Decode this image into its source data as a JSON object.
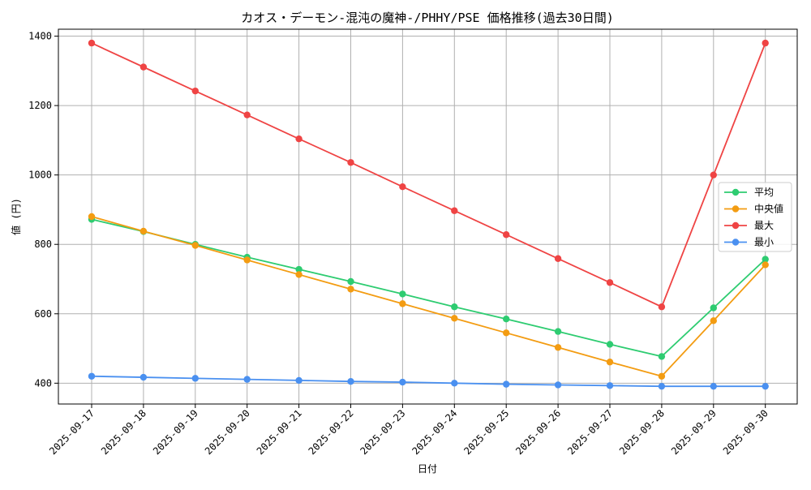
{
  "chart_data": {
    "type": "line",
    "title": "カオス・デーモン-混沌の魔神-/PHHY/PSE 価格推移(過去30日間)",
    "xlabel": "日付",
    "ylabel": "値 (円)",
    "categories": [
      "2025-09-17",
      "2025-09-18",
      "2025-09-19",
      "2025-09-20",
      "2025-09-21",
      "2025-09-22",
      "2025-09-23",
      "2025-09-24",
      "2025-09-25",
      "2025-09-26",
      "2025-09-27",
      "2025-09-28",
      "2025-09-29",
      "2025-09-30"
    ],
    "ylim": [
      340,
      1420
    ],
    "yticks": [
      400,
      600,
      800,
      1000,
      1200,
      1400
    ],
    "grid": true,
    "legend_position": "center-right",
    "series": [
      {
        "name": "平均",
        "color": "#2ecc71",
        "values": [
          872,
          837,
          800,
          763,
          728,
          693,
          657,
          620,
          585,
          549,
          512,
          477,
          617,
          757
        ]
      },
      {
        "name": "中央値",
        "color": "#f39c12",
        "values": [
          880,
          838,
          797,
          755,
          713,
          671,
          629,
          587,
          545,
          503,
          461,
          420,
          580,
          741
        ]
      },
      {
        "name": "最大",
        "color": "#ef4444",
        "values": [
          1380,
          1311,
          1242,
          1173,
          1104,
          1036,
          966,
          897,
          828,
          759,
          690,
          620,
          1000,
          1380
        ]
      },
      {
        "name": "最小",
        "color": "#4a90f0",
        "values": [
          420,
          417,
          414,
          411,
          408,
          405,
          403,
          400,
          397,
          395,
          393,
          391,
          391,
          391
        ]
      }
    ]
  }
}
